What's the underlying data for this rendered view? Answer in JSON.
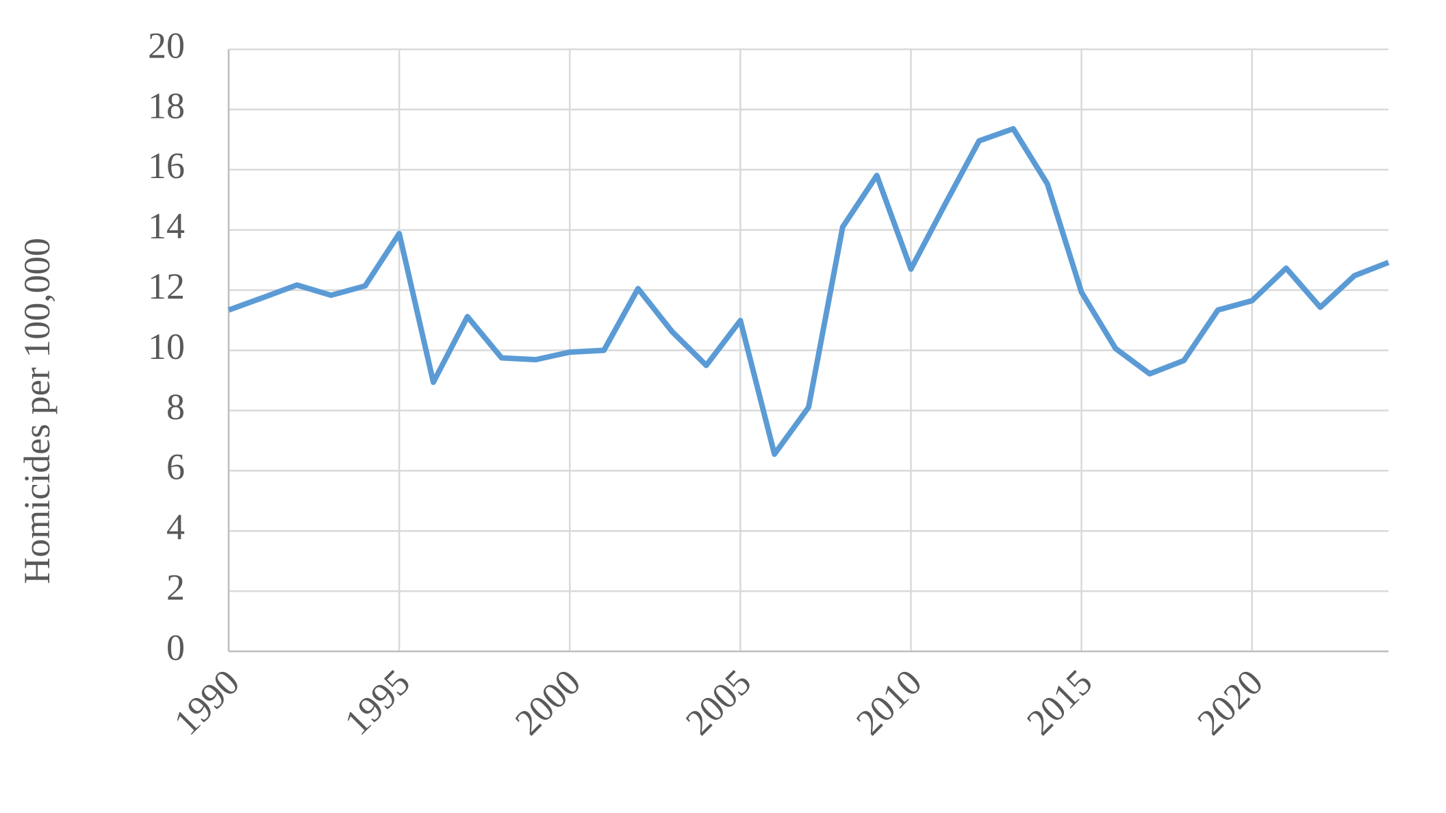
{
  "chart_data": {
    "type": "line",
    "y_label": "Homicides per 100,000",
    "x": [
      1990,
      1991,
      1992,
      1993,
      1994,
      1995,
      1996,
      1997,
      1998,
      1999,
      2000,
      2001,
      2002,
      2003,
      2004,
      2005,
      2006,
      2007,
      2008,
      2009,
      2010,
      2011,
      2012,
      2013,
      2014,
      2015,
      2016,
      2017,
      2018,
      2019,
      2020,
      2021,
      2022,
      2023,
      2024
    ],
    "series": [
      {
        "name": "Homicides per 100,000",
        "color": "#5b9bd5",
        "values": [
          11.34,
          11.75,
          12.17,
          11.83,
          12.14,
          13.88,
          8.94,
          11.12,
          9.75,
          9.69,
          9.94,
          10.0,
          12.05,
          10.62,
          9.5,
          10.99,
          6.55,
          8.11,
          14.1,
          15.81,
          12.7,
          14.85,
          16.96,
          17.36,
          15.53,
          11.93,
          10.06,
          9.22,
          9.66,
          11.34,
          11.65,
          12.73,
          11.43,
          12.48,
          12.92
        ]
      }
    ],
    "xlim": [
      1990,
      2024
    ],
    "xticks": [
      1990,
      1995,
      2000,
      2005,
      2010,
      2015,
      2020
    ],
    "ylim": [
      0,
      20
    ],
    "yticks": [
      0,
      2,
      4,
      6,
      8,
      10,
      12,
      14,
      16,
      18,
      20
    ],
    "grid": true
  }
}
